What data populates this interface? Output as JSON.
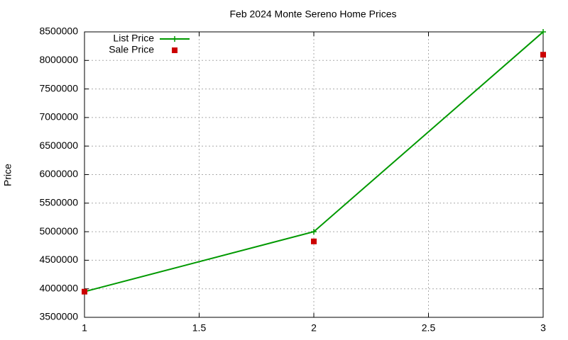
{
  "chart_data": {
    "type": "line",
    "title": "Feb 2024 Monte Sereno Home Prices",
    "y_label": "Price",
    "x": [
      1,
      2,
      3
    ],
    "series": [
      {
        "name": "List Price",
        "color": "#009900",
        "line": true,
        "marker": "plus",
        "values": [
          3950000,
          5000000,
          8500000
        ]
      },
      {
        "name": "Sale Price",
        "color": "#cc0000",
        "line": false,
        "marker": "square",
        "values": [
          3950000,
          4830000,
          8100000
        ]
      }
    ],
    "xlim": [
      1,
      3
    ],
    "xticks": [
      1,
      1.5,
      2,
      2.5,
      3
    ],
    "ylim": [
      3500000,
      8500000
    ],
    "yticks": [
      3500000,
      4000000,
      4500000,
      5000000,
      5500000,
      6000000,
      6500000,
      7000000,
      7500000,
      8000000,
      8500000
    ],
    "grid": true,
    "legend": "top-left"
  }
}
